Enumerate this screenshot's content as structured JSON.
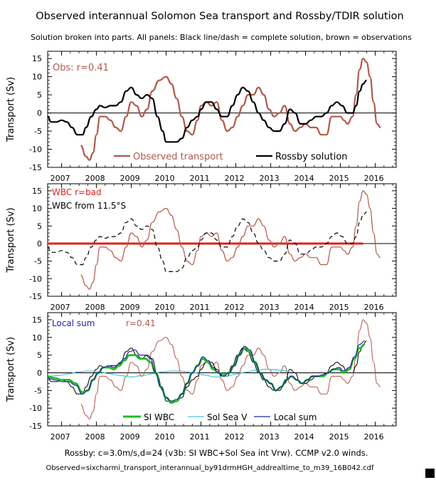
{
  "title": "Observed interannual Solomon Sea transport and Rossby/TDIR solution",
  "subtitle": "Solution broken into parts. All panels: Black line/dash = complete solution, brown = observations",
  "footer_line1": "Rossby: c=3.0m/s,d=24 (v3b: SI WBC+Sol Sea int Vrw). CCMP v2.0 winds.",
  "footer_line2": "Observed=sixcharmi_transport_interannual_by91drmHGH_addrealtime_to_m39_16B042.cdf",
  "colors": {
    "observed": "#b0584a",
    "rossby": "#000000",
    "wbc_red": "#e0201a",
    "si_wbc": "#22bb22",
    "sol_sea_v": "#44c8d8",
    "local_sum": "#2222aa",
    "label_brown": "#b0584a",
    "label_blue": "#2222aa"
  },
  "chart_data": [
    {
      "type": "line",
      "panel": "top",
      "annotation": "Obs: r=0.41",
      "xlabel": "",
      "ylabel": "Transport (Sv)",
      "xlim": [
        2006.6,
        2016.6
      ],
      "ylim": [
        -15,
        17
      ],
      "yticks": [
        15,
        10,
        5,
        0,
        -5,
        -10,
        -15
      ],
      "xticks": [
        "2007",
        "2008",
        "2009",
        "2010",
        "2011",
        "2012",
        "2013",
        "2014",
        "2015",
        "2016"
      ],
      "zero_line": true,
      "legend": [
        "Observed transport",
        "Rossby solution"
      ],
      "legend_placement": "bottom",
      "series": [
        {
          "name": "Observed transport",
          "key": "obs",
          "style": "solid"
        },
        {
          "name": "Rossby solution",
          "key": "rossby",
          "style": "solid"
        }
      ]
    },
    {
      "type": "line",
      "panel": "middle",
      "annotation": "WBC r=bad",
      "annotation2": "WBC from 11.5°S",
      "xlabel": "",
      "ylabel": "Transport (Sv)",
      "xlim": [
        2006.6,
        2016.6
      ],
      "ylim": [
        -15,
        17
      ],
      "yticks": [
        15,
        10,
        5,
        0,
        -5,
        -10,
        -15
      ],
      "xticks": [
        "2007",
        "2008",
        "2009",
        "2010",
        "2011",
        "2012",
        "2013",
        "2014",
        "2015",
        "2016"
      ],
      "zero_line": true,
      "red_flat_line": {
        "x": [
          2006.6,
          2015.65
        ],
        "y": 0
      },
      "series": [
        {
          "key": "obs",
          "style": "solid"
        },
        {
          "key": "rossby",
          "style": "dash"
        }
      ]
    },
    {
      "type": "line",
      "panel": "bottom",
      "annotation": "Local sum",
      "annotation_r": "r=0.41",
      "xlabel": "",
      "ylabel": "Transport (Sv)",
      "xlim": [
        2006.6,
        2016.6
      ],
      "ylim": [
        -15,
        17
      ],
      "yticks": [
        15,
        10,
        5,
        0,
        -5,
        -10,
        -15
      ],
      "xticks": [
        "2007",
        "2008",
        "2009",
        "2010",
        "2011",
        "2012",
        "2013",
        "2014",
        "2015",
        "2016"
      ],
      "zero_line": true,
      "legend": [
        "SI WBC",
        "Sol Sea V",
        "Local sum"
      ],
      "legend_placement": "bottom",
      "series": [
        {
          "key": "obs",
          "style": "solid"
        },
        {
          "key": "rossby",
          "style": "solid"
        },
        {
          "name": "SI WBC",
          "key": "siwbc",
          "style": "solid"
        },
        {
          "name": "Sol Sea V",
          "key": "solsea",
          "style": "solid"
        },
        {
          "name": "Local sum",
          "key": "localsum",
          "style": "solid"
        }
      ]
    }
  ],
  "series_values": {
    "obs": {
      "x": [
        2007.55,
        2007.7,
        2007.8,
        2007.9,
        2008.0,
        2008.1,
        2008.25,
        2008.4,
        2008.55,
        2008.7,
        2008.85,
        2009.0,
        2009.15,
        2009.3,
        2009.45,
        2009.6,
        2009.8,
        2010.0,
        2010.15,
        2010.3,
        2010.45,
        2010.6,
        2010.75,
        2010.9,
        2011.0,
        2011.15,
        2011.3,
        2011.45,
        2011.6,
        2011.75,
        2011.9,
        2012.05,
        2012.2,
        2012.35,
        2012.5,
        2012.65,
        2012.8,
        2012.95,
        2013.1,
        2013.25,
        2013.4,
        2013.55,
        2013.7,
        2013.85,
        2014.0,
        2014.15,
        2014.3,
        2014.45,
        2014.6,
        2014.75,
        2014.85,
        2015.0,
        2015.1,
        2015.2,
        2015.35,
        2015.45,
        2015.55,
        2015.65,
        2015.75,
        2015.85,
        2015.95,
        2016.05,
        2016.15
      ],
      "y": [
        -9,
        -12,
        -13,
        -11,
        -6,
        -1,
        -1,
        -2,
        -4,
        -5,
        -1,
        3,
        2,
        -1,
        1,
        6,
        9,
        10,
        8,
        4,
        -1,
        -5,
        -6,
        -2,
        2,
        3,
        2,
        3,
        -2,
        -5,
        -4,
        -1,
        2,
        5,
        5,
        7,
        5,
        1,
        -1,
        0,
        2,
        -3,
        -5,
        -4,
        -3,
        -4,
        -4,
        -6,
        -6,
        -1,
        -1,
        -1,
        -2,
        -3,
        -1,
        5,
        12,
        15,
        14,
        10,
        3,
        -3,
        -4
      ]
    },
    "rossby": {
      "x": [
        2006.6,
        2006.7,
        2006.85,
        2007.0,
        2007.15,
        2007.3,
        2007.45,
        2007.6,
        2007.7,
        2007.85,
        2008.0,
        2008.1,
        2008.25,
        2008.4,
        2008.55,
        2008.7,
        2008.85,
        2009.0,
        2009.15,
        2009.3,
        2009.45,
        2009.6,
        2009.75,
        2009.9,
        2010.0,
        2010.15,
        2010.3,
        2010.45,
        2010.6,
        2010.75,
        2010.9,
        2011.0,
        2011.15,
        2011.3,
        2011.45,
        2011.6,
        2011.75,
        2011.9,
        2012.05,
        2012.2,
        2012.35,
        2012.5,
        2012.65,
        2012.8,
        2012.95,
        2013.1,
        2013.25,
        2013.4,
        2013.55,
        2013.7,
        2013.85,
        2014.0,
        2014.15,
        2014.3,
        2014.45,
        2014.6,
        2014.75,
        2014.9,
        2015.05,
        2015.2,
        2015.35,
        2015.45,
        2015.55,
        2015.65,
        2015.75
      ],
      "y": [
        -1,
        -2.5,
        -2.5,
        -2,
        -2.5,
        -4,
        -6,
        -6,
        -4,
        -1,
        1,
        2,
        1.5,
        2,
        2,
        3,
        6,
        7,
        5,
        4,
        5,
        4,
        -1,
        -5,
        -8,
        -8,
        -8,
        -7,
        -4,
        -2,
        -1,
        1,
        3,
        3,
        1,
        -1,
        -1,
        2,
        5,
        7,
        6,
        3,
        0,
        -2,
        -4,
        -5,
        -5,
        -3,
        1,
        0,
        -3,
        -3,
        -2,
        -1,
        -1,
        0,
        2,
        3,
        2,
        0,
        0,
        2,
        6,
        8,
        9
      ]
    },
    "siwbc": {
      "x": [
        2006.6,
        2006.8,
        2007.0,
        2007.2,
        2007.4,
        2007.6,
        2007.75,
        2007.9,
        2008.05,
        2008.2,
        2008.35,
        2008.5,
        2008.65,
        2008.8,
        2008.95,
        2009.1,
        2009.25,
        2009.4,
        2009.55,
        2009.7,
        2009.85,
        2010.0,
        2010.15,
        2010.3,
        2010.45,
        2010.6,
        2010.75,
        2010.9,
        2011.05,
        2011.2,
        2011.35,
        2011.5,
        2011.65,
        2011.8,
        2011.95,
        2012.1,
        2012.25,
        2012.4,
        2012.55,
        2012.7,
        2012.85,
        2013.0,
        2013.15,
        2013.3,
        2013.45,
        2013.6,
        2013.75,
        2013.9,
        2014.05,
        2014.2,
        2014.35,
        2014.5,
        2014.65,
        2014.8,
        2014.95,
        2015.1,
        2015.25,
        2015.4,
        2015.55,
        2015.7
      ],
      "y": [
        -1,
        -1.5,
        -2,
        -2,
        -3,
        -5.5,
        -5,
        -2,
        0,
        1.5,
        1.5,
        1,
        2,
        3.5,
        5,
        5,
        4,
        4,
        3,
        0,
        -4,
        -7,
        -8.5,
        -8,
        -6,
        -3,
        0,
        2,
        4,
        3,
        1,
        0,
        -0.5,
        0,
        2,
        5,
        7,
        6,
        3,
        0,
        -2,
        -3,
        -5,
        -4,
        -2,
        -1,
        -2,
        -3,
        -2,
        -1,
        -1,
        -1,
        0,
        1,
        1,
        0,
        1,
        4,
        7,
        8
      ]
    },
    "solsea": {
      "x": [
        2006.6,
        2006.9,
        2007.2,
        2007.5,
        2007.8,
        2008.1,
        2008.4,
        2008.7,
        2009.0,
        2009.3,
        2009.6,
        2009.9,
        2010.2,
        2010.5,
        2010.8,
        2011.1,
        2011.4,
        2011.7,
        2012.0,
        2012.3,
        2012.6,
        2012.9,
        2013.2,
        2013.5,
        2013.6
      ],
      "y": [
        -1,
        -0.8,
        -0.3,
        0.3,
        0.5,
        0.2,
        -0.3,
        -0.8,
        -1.2,
        -0.8,
        -0.3,
        0.3,
        0.5,
        0.4,
        0,
        -0.6,
        -1.2,
        -1.0,
        -0.4,
        0.2,
        0.8,
        1.0,
        0.8,
        0.5,
        0.3
      ]
    },
    "localsum": {
      "x": [
        2006.6,
        2006.8,
        2007.0,
        2007.2,
        2007.4,
        2007.6,
        2007.75,
        2007.9,
        2008.05,
        2008.2,
        2008.35,
        2008.5,
        2008.65,
        2008.8,
        2008.95,
        2009.1,
        2009.25,
        2009.4,
        2009.55,
        2009.7,
        2009.85,
        2010.0,
        2010.15,
        2010.3,
        2010.45,
        2010.6,
        2010.75,
        2010.9,
        2011.05,
        2011.2,
        2011.35,
        2011.5,
        2011.65,
        2011.8,
        2011.95,
        2012.1,
        2012.25,
        2012.4,
        2012.55,
        2012.7,
        2012.85,
        2013.0,
        2013.15,
        2013.3,
        2013.45,
        2013.6,
        2013.75,
        2013.9,
        2014.05,
        2014.2,
        2014.35,
        2014.5,
        2014.65,
        2014.8,
        2014.95,
        2015.1,
        2015.25,
        2015.4,
        2015.55,
        2015.7
      ],
      "y": [
        -1.5,
        -2,
        -2.5,
        -2.5,
        -3.5,
        -6,
        -5,
        -2,
        0,
        1.5,
        2,
        1.5,
        2.5,
        4,
        6,
        6.5,
        5,
        5,
        4,
        0,
        -4,
        -7,
        -8,
        -7.5,
        -6,
        -3,
        0,
        2,
        4.5,
        3.5,
        1.5,
        0,
        -1,
        0,
        2,
        5,
        7.5,
        6.5,
        3,
        0,
        -2,
        -3,
        -5,
        -4,
        -2,
        -1,
        -2,
        -3,
        -2,
        -1,
        -1,
        -0.5,
        0,
        1,
        1.5,
        0.5,
        1.5,
        4.5,
        8,
        9
      ]
    }
  }
}
